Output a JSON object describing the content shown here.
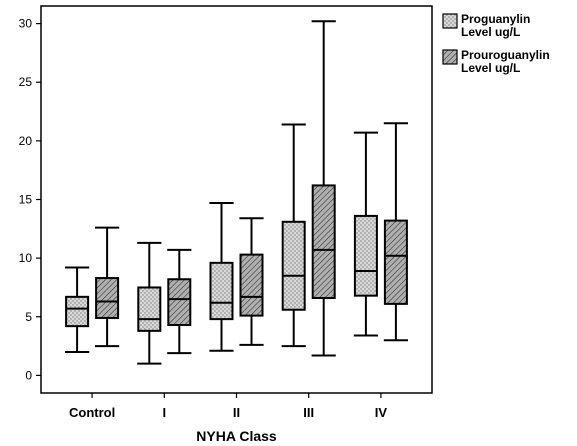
{
  "chart_data": {
    "type": "boxplot",
    "xlabel": "NYHA Class",
    "ylabel": "",
    "categories": [
      "Control",
      "I",
      "II",
      "III",
      "IV"
    ],
    "ylim": [
      -1.5,
      31.5
    ],
    "yticks": [
      0,
      5,
      10,
      15,
      20,
      25,
      30
    ],
    "grid": false,
    "legend_position": "right",
    "series": [
      {
        "name_lines": [
          "Proguanylin",
          "Level ug/L"
        ],
        "pattern": "dotted",
        "fill": "#d9d9d9",
        "boxes": [
          {
            "min": 2.0,
            "q1": 4.2,
            "median": 5.7,
            "q3": 6.7,
            "max": 9.2
          },
          {
            "min": 1.0,
            "q1": 3.8,
            "median": 4.8,
            "q3": 7.5,
            "max": 11.3
          },
          {
            "min": 2.1,
            "q1": 4.8,
            "median": 6.2,
            "q3": 9.6,
            "max": 14.7
          },
          {
            "min": 2.5,
            "q1": 5.6,
            "median": 8.5,
            "q3": 13.1,
            "max": 21.4
          },
          {
            "min": 3.4,
            "q1": 6.8,
            "median": 8.9,
            "q3": 13.6,
            "max": 20.7
          }
        ]
      },
      {
        "name_lines": [
          "Prouroguanylin",
          "Level ug/L"
        ],
        "pattern": "hatched",
        "fill": "#b0b0b0",
        "boxes": [
          {
            "min": 2.5,
            "q1": 4.9,
            "median": 6.3,
            "q3": 8.3,
            "max": 12.6
          },
          {
            "min": 1.9,
            "q1": 4.3,
            "median": 6.5,
            "q3": 8.2,
            "max": 10.7
          },
          {
            "min": 2.6,
            "q1": 5.1,
            "median": 6.7,
            "q3": 10.3,
            "max": 13.4
          },
          {
            "min": 1.7,
            "q1": 6.6,
            "median": 10.7,
            "q3": 16.2,
            "max": 30.2
          },
          {
            "min": 3.0,
            "q1": 6.1,
            "median": 10.2,
            "q3": 13.2,
            "max": 21.5
          }
        ]
      }
    ]
  }
}
